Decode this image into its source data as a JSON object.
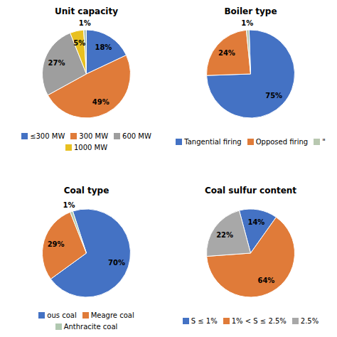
{
  "chart_data": [
    {
      "type": "pie",
      "title": "Unit capacity",
      "categories": [
        "≤300 MW",
        "300 MW",
        "600 MW",
        "1000 MW",
        null
      ],
      "values": [
        18,
        49,
        27,
        5,
        1
      ],
      "value_labels": [
        "18%",
        "49%",
        "27%",
        "5%",
        "1%"
      ],
      "colors": [
        "#4472C4",
        "#E07B39",
        "#9E9E9E",
        "#E8C020",
        "#B0C8B8"
      ],
      "data_labels": true,
      "legend": "bottom"
    },
    {
      "type": "pie",
      "title": "Boiler type",
      "categories": [
        "Tangential firing",
        "Opposed firing",
        "\""
      ],
      "values": [
        75,
        24,
        1
      ],
      "value_labels": [
        "75%",
        "24%",
        "1%"
      ],
      "colors": [
        "#4472C4",
        "#E07B39",
        "#B8C8B0"
      ],
      "data_labels": true,
      "legend": "bottom"
    },
    {
      "type": "pie",
      "title": "Coal type",
      "categories": [
        "ous coal",
        "Meagre coal",
        "Anthracite coal"
      ],
      "values": [
        70,
        29,
        1
      ],
      "value_labels": [
        "70%",
        "29%",
        "1%"
      ],
      "colors": [
        "#4472C4",
        "#E07B39",
        "#B0C8B0"
      ],
      "data_labels": true,
      "legend": "bottom"
    },
    {
      "type": "pie",
      "title": "Coal sulfur content",
      "categories": [
        "S ≤ 1%",
        "1% < S ≤ 2.5%",
        "2.5%"
      ],
      "values": [
        14,
        64,
        22
      ],
      "value_labels": [
        "14%",
        "64%",
        "22%"
      ],
      "colors": [
        "#4472C4",
        "#E07B39",
        "#A8A8A8"
      ],
      "data_labels": true,
      "legend": "bottom"
    }
  ]
}
